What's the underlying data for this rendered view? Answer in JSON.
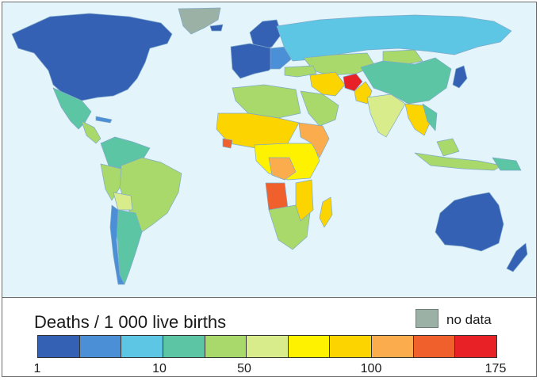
{
  "legend": {
    "title": "Deaths / 1 000 live births",
    "no_data_label": "no data",
    "no_data_color": "#9bb1a6",
    "scale_colors": [
      "#3461b3",
      "#4b8fd6",
      "#5cc6e4",
      "#5cc6a4",
      "#a9d96a",
      "#d9ec8c",
      "#fff200",
      "#fcd500",
      "#fbac4c",
      "#f0602c",
      "#e82127"
    ],
    "ticks": [
      "1",
      "10",
      "50",
      "100",
      "175"
    ]
  },
  "map": {
    "ocean_color": "#e3f4fb"
  }
}
